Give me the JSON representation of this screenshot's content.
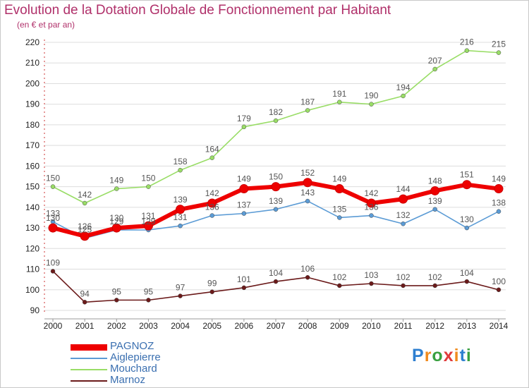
{
  "title": "Evolution de la Dotation Globale de Fonctionnement par Habitant",
  "subtitle": "(en € et par an)",
  "logo": {
    "text": "Proxiti",
    "letters": [
      "P",
      "r",
      "o",
      "x",
      "i",
      "t",
      "i"
    ],
    "colors": [
      "#2e7fd0",
      "#f08a1c",
      "#3aa040",
      "#e03a3a",
      "#f08a1c",
      "#2e7fd0",
      "#3aa040"
    ]
  },
  "chart_data": {
    "type": "line",
    "title": "Evolution de la Dotation Globale de Fonctionnement par Habitant",
    "subtitle": "(en € et par an)",
    "x": [
      "2000",
      "2001",
      "2002",
      "2003",
      "2004",
      "2005",
      "2006",
      "2007",
      "2008",
      "2009",
      "2010",
      "2011",
      "2012",
      "2013",
      "2014"
    ],
    "ylim": [
      90,
      220
    ],
    "yticks": [
      90,
      100,
      110,
      120,
      130,
      140,
      150,
      160,
      170,
      180,
      190,
      200,
      210,
      220
    ],
    "grid": true,
    "legend_position": "bottom-left",
    "series": [
      {
        "name": "Mouchard",
        "color": "#99dd66",
        "values": [
          150,
          142,
          149,
          150,
          158,
          164,
          179,
          182,
          187,
          191,
          190,
          194,
          207,
          216,
          215
        ]
      },
      {
        "name": "Aiglepierre",
        "color": "#5b9bd5",
        "values": [
          133,
          125,
          129,
          129,
          131,
          136,
          137,
          139,
          143,
          135,
          136,
          132,
          139,
          130,
          138
        ]
      },
      {
        "name": "Marnoz",
        "color": "#6b1a1a",
        "values": [
          109,
          94,
          95,
          95,
          97,
          99,
          101,
          104,
          106,
          102,
          103,
          102,
          102,
          104,
          100
        ]
      },
      {
        "name": "PAGNOZ",
        "color": "#ee0000",
        "values": [
          130,
          126,
          130,
          131,
          139,
          142,
          149,
          150,
          152,
          149,
          142,
          144,
          148,
          151,
          149
        ]
      }
    ],
    "legend": [
      "PAGNOZ",
      "Aiglepierre",
      "Mouchard",
      "Marnoz"
    ]
  }
}
